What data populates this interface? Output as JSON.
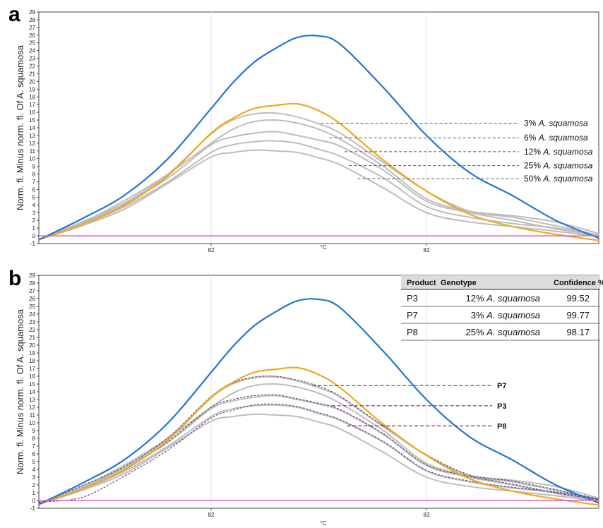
{
  "chart_data": [
    {
      "panel": "a",
      "type": "line",
      "ylabel": "Norm. fl. Minus norm. fl. Of A. squamosa",
      "xlabel": "°C",
      "xlim": [
        81.2,
        83.8
      ],
      "ylim": [
        -1,
        29
      ],
      "x_ticks": [
        "82",
        "83"
      ],
      "y_ticks": [
        "-1",
        "0",
        "1",
        "2",
        "3",
        "4",
        "5",
        "6",
        "7",
        "8",
        "9",
        "10",
        "11",
        "12",
        "13",
        "14",
        "15",
        "16",
        "17",
        "18",
        "19",
        "20",
        "21",
        "22",
        "23",
        "24",
        "25",
        "26",
        "27",
        "28",
        "29"
      ],
      "grid": "vertical",
      "colors": {
        "blue": "#1f77d0",
        "orange": "#f0a91e",
        "gray": "#bdbdbd",
        "pink": "#e060c0",
        "dashed": "#555555"
      },
      "x": [
        81.2,
        81.4,
        81.6,
        81.8,
        82.0,
        82.1,
        82.2,
        82.3,
        82.4,
        82.5,
        82.6,
        82.8,
        83.0,
        83.2,
        83.4,
        83.6,
        83.8
      ],
      "series": [
        {
          "color": "blue",
          "values": [
            -0.5,
            2.2,
            5.3,
            10.0,
            16.5,
            19.8,
            22.5,
            24.3,
            25.7,
            25.9,
            24.8,
            19.2,
            13.0,
            8.2,
            5.2,
            2.0,
            -0.3
          ]
        },
        {
          "color": "orange",
          "values": [
            -0.5,
            1.5,
            4.0,
            7.8,
            13.3,
            15.2,
            16.5,
            16.9,
            17.1,
            16.2,
            14.5,
            9.8,
            5.8,
            2.8,
            1.2,
            0.2,
            -0.6
          ]
        },
        {
          "color": "gray",
          "values": [
            -0.5,
            1.8,
            4.3,
            8.0,
            13.2,
            15.0,
            15.8,
            15.9,
            15.4,
            14.5,
            13.3,
            9.5,
            5.8,
            3.2,
            2.4,
            1.3,
            0.1
          ]
        },
        {
          "color": "gray",
          "values": [
            -0.5,
            1.7,
            4.6,
            8.0,
            12.0,
            13.8,
            14.8,
            15.0,
            14.6,
            13.8,
            12.5,
            9.0,
            4.8,
            3.2,
            2.6,
            1.8,
            0.3
          ]
        },
        {
          "color": "gray",
          "values": [
            -0.5,
            1.6,
            4.2,
            7.5,
            11.8,
            12.8,
            13.3,
            13.5,
            13.0,
            12.4,
            11.6,
            8.5,
            4.5,
            3.0,
            2.0,
            0.9,
            0.0
          ]
        },
        {
          "color": "gray",
          "values": [
            -0.5,
            1.4,
            3.8,
            7.0,
            10.8,
            11.8,
            12.2,
            12.3,
            12.0,
            11.2,
            10.3,
            7.5,
            3.8,
            2.4,
            1.6,
            1.0,
            0.1
          ]
        },
        {
          "color": "gray",
          "values": [
            -0.5,
            1.3,
            3.5,
            6.8,
            10.2,
            10.8,
            11.1,
            11.0,
            10.8,
            10.1,
            9.2,
            6.2,
            3.0,
            1.8,
            1.2,
            0.6,
            -0.1
          ]
        },
        {
          "color": "pink",
          "values": [
            0,
            0,
            0,
            0,
            0,
            0,
            0,
            0,
            0,
            0,
            0,
            0,
            0,
            0,
            0,
            0,
            0
          ]
        }
      ],
      "annotations": [
        {
          "prefix": "3% ",
          "italic": "A. squamosa",
          "y": 14.6,
          "x_start": 82.51
        },
        {
          "prefix": "6% ",
          "italic": "A. squamosa",
          "y": 12.7,
          "x_start": 82.55
        },
        {
          "prefix": "12% ",
          "italic": "A. squamosa",
          "y": 10.9,
          "x_start": 82.62
        },
        {
          "prefix": "25% ",
          "italic": "A. squamosa",
          "y": 9.1,
          "x_start": 82.64
        },
        {
          "prefix": "50% ",
          "italic": "A. squamosa",
          "y": 7.4,
          "x_start": 82.68
        }
      ]
    },
    {
      "panel": "b",
      "type": "line",
      "ylabel": "Norm. fl. Minus norm. fl. Of A. squamosa",
      "xlabel": "°C",
      "xlim": [
        81.2,
        83.8
      ],
      "ylim": [
        -1,
        29
      ],
      "x_ticks": [
        "82",
        "83"
      ],
      "y_ticks": [
        "-1",
        "0",
        "1",
        "2",
        "3",
        "4",
        "5",
        "6",
        "7",
        "8",
        "9",
        "10",
        "11",
        "12",
        "13",
        "14",
        "15",
        "16",
        "17",
        "18",
        "19",
        "20",
        "21",
        "22",
        "23",
        "24",
        "25",
        "26",
        "27",
        "28",
        "29"
      ],
      "grid": "vertical",
      "colors": {
        "blue": "#1f77d0",
        "orange": "#f0a91e",
        "gray": "#bdbdbd",
        "pink": "#e060c0",
        "sample": "#5a3a7a",
        "leader": "#8b2252"
      },
      "x": [
        81.2,
        81.4,
        81.6,
        81.8,
        82.0,
        82.1,
        82.2,
        82.3,
        82.4,
        82.5,
        82.6,
        82.8,
        83.0,
        83.2,
        83.4,
        83.6,
        83.8
      ],
      "series": [
        {
          "color": "blue",
          "values": [
            -0.5,
            2.2,
            5.3,
            10.0,
            16.5,
            19.8,
            22.5,
            24.3,
            25.7,
            25.9,
            24.8,
            19.2,
            13.0,
            8.2,
            5.2,
            2.0,
            -0.3
          ]
        },
        {
          "color": "orange",
          "values": [
            -0.5,
            1.5,
            4.0,
            7.8,
            13.3,
            15.2,
            16.5,
            16.9,
            17.1,
            16.2,
            14.5,
            9.8,
            5.8,
            2.8,
            1.2,
            0.2,
            -0.6
          ]
        },
        {
          "color": "gray",
          "values": [
            -0.5,
            1.8,
            4.3,
            8.0,
            13.2,
            15.0,
            15.8,
            15.9,
            15.4,
            14.5,
            13.3,
            9.5,
            5.8,
            3.2,
            2.4,
            1.3,
            0.1
          ]
        },
        {
          "color": "gray",
          "values": [
            -0.5,
            1.7,
            4.6,
            8.0,
            12.0,
            13.8,
            14.8,
            15.0,
            14.6,
            13.8,
            12.5,
            9.0,
            4.8,
            3.2,
            2.6,
            1.8,
            0.3
          ]
        },
        {
          "color": "gray",
          "values": [
            -0.5,
            1.6,
            4.2,
            7.5,
            11.8,
            12.8,
            13.3,
            13.5,
            13.0,
            12.4,
            11.6,
            8.5,
            4.5,
            3.0,
            2.0,
            0.9,
            0.0
          ]
        },
        {
          "color": "gray",
          "values": [
            -0.5,
            1.4,
            3.8,
            7.0,
            10.8,
            11.8,
            12.2,
            12.3,
            12.0,
            11.2,
            10.3,
            7.5,
            3.8,
            2.4,
            1.6,
            1.0,
            0.1
          ]
        },
        {
          "color": "gray",
          "values": [
            -0.5,
            1.3,
            3.5,
            6.8,
            10.2,
            10.8,
            11.1,
            11.0,
            10.8,
            10.1,
            9.2,
            6.2,
            3.0,
            1.8,
            1.2,
            0.6,
            -0.1
          ]
        },
        {
          "color": "sample",
          "dashed": true,
          "values": [
            -0.4,
            1.9,
            4.4,
            8.1,
            13.4,
            15.1,
            15.9,
            16.0,
            15.5,
            14.7,
            13.4,
            9.6,
            5.9,
            3.3,
            2.5,
            1.4,
            0.2
          ]
        },
        {
          "color": "sample",
          "dashed": true,
          "values": [
            -0.3,
            1.5,
            4.0,
            7.6,
            12.0,
            13.0,
            13.5,
            13.6,
            13.1,
            12.5,
            11.7,
            8.6,
            4.6,
            3.1,
            2.1,
            1.0,
            0.1
          ]
        },
        {
          "color": "sample",
          "dashed": true,
          "values": [
            -0.2,
            0.4,
            3.2,
            6.5,
            10.6,
            11.6,
            12.3,
            12.4,
            12.1,
            11.3,
            10.4,
            7.6,
            3.9,
            2.5,
            1.7,
            1.1,
            0.2
          ]
        },
        {
          "color": "pink",
          "values": [
            0,
            0,
            0,
            0,
            0,
            0,
            0,
            0,
            0,
            0,
            0,
            0,
            0,
            0,
            0,
            0,
            0
          ]
        }
      ],
      "annotations": [
        {
          "label": "P7",
          "y": 14.8,
          "x_start": 82.47
        },
        {
          "label": "P3",
          "y": 12.2,
          "x_start": 82.56
        },
        {
          "label": "P8",
          "y": 9.6,
          "x_start": 82.63
        }
      ],
      "table": {
        "headers": [
          "Product",
          "Genotype",
          "Confidence %"
        ],
        "rows": [
          {
            "product": "P3",
            "genotype_prefix": "12% ",
            "genotype_italic": "A. squamosa",
            "confidence": "99.52"
          },
          {
            "product": "P7",
            "genotype_prefix": "3% ",
            "genotype_italic": "A. squamosa",
            "confidence": "99.77"
          },
          {
            "product": "P8",
            "genotype_prefix": "25% ",
            "genotype_italic": "A. squamosa",
            "confidence": "98.17"
          }
        ]
      }
    }
  ]
}
